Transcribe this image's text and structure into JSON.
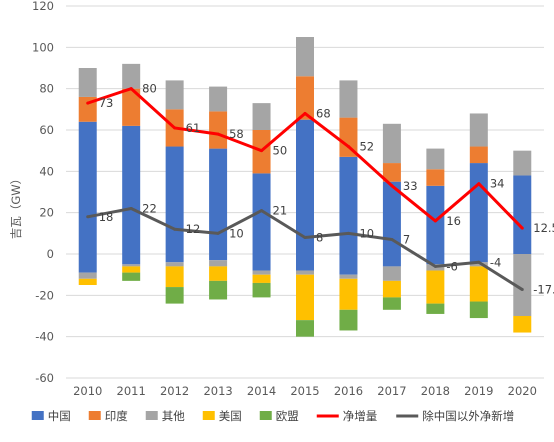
{
  "chart_data": {
    "type": "bar",
    "title": "",
    "xlabel": "",
    "ylabel": "吉瓦（GW）",
    "ylim": [
      -60,
      120
    ],
    "yticks": [
      -60,
      -40,
      -20,
      0,
      20,
      40,
      60,
      80,
      100,
      120
    ],
    "grid": true,
    "legend_position": "bottom",
    "categories": [
      "2010",
      "2011",
      "2012",
      "2013",
      "2014",
      "2015",
      "2016",
      "2017",
      "2018",
      "2019",
      "2020"
    ],
    "stacked_series": [
      {
        "name": "中国",
        "color": "#4472C4",
        "positive": [
          64,
          62,
          52,
          51,
          39,
          65,
          47,
          35,
          33,
          44,
          38
        ],
        "negative": [
          -9,
          -5,
          -4,
          -3,
          -8,
          -8,
          -10,
          -6,
          -5,
          -4,
          0
        ]
      },
      {
        "name": "印度",
        "color": "#ED7D31",
        "positive": [
          12,
          18,
          18,
          18,
          21,
          21,
          19,
          9,
          8,
          8,
          0
        ],
        "negative": [
          0,
          0,
          0,
          0,
          0,
          0,
          0,
          0,
          0,
          0,
          0
        ]
      },
      {
        "name": "其他",
        "color": "#A5A5A5",
        "positive": [
          14,
          12,
          14,
          12,
          13,
          19,
          18,
          19,
          10,
          16,
          12
        ],
        "negative": [
          -3,
          -1,
          -2,
          -3,
          -2,
          -2,
          -2,
          -7,
          -3,
          -2,
          -30
        ]
      },
      {
        "name": "美国",
        "color": "#FFC000",
        "positive": [
          0,
          0,
          0,
          0,
          0,
          0,
          0,
          0,
          0,
          0,
          0
        ],
        "negative": [
          -3,
          -3,
          -10,
          -7,
          -4,
          -22,
          -15,
          -8,
          -16,
          -17,
          -8
        ]
      },
      {
        "name": "欧盟",
        "color": "#70AD47",
        "positive": [
          0,
          0,
          0,
          0,
          0,
          0,
          0,
          0,
          0,
          0,
          0
        ],
        "negative": [
          0,
          -4,
          -8,
          -9,
          -7,
          -8,
          -10,
          -6,
          -5,
          -8,
          0
        ]
      }
    ],
    "line_series": [
      {
        "name": "净增量",
        "color": "#FF0000",
        "values": [
          73,
          80,
          61,
          58,
          50,
          68,
          52,
          33,
          16,
          34,
          12.5
        ],
        "labels": [
          "73",
          "80",
          "61",
          "58",
          "50",
          "68",
          "52",
          "33",
          "16",
          "34",
          "12.5"
        ]
      },
      {
        "name": "除中国以外净新增",
        "color": "#595959",
        "values": [
          18,
          22,
          12,
          10,
          21,
          8,
          10,
          7,
          -6,
          -4,
          -17.2
        ],
        "labels": [
          "18",
          "22",
          "12",
          "10",
          "21",
          "8",
          "10",
          "7",
          "-6",
          "-4",
          "-17.2"
        ]
      }
    ]
  }
}
